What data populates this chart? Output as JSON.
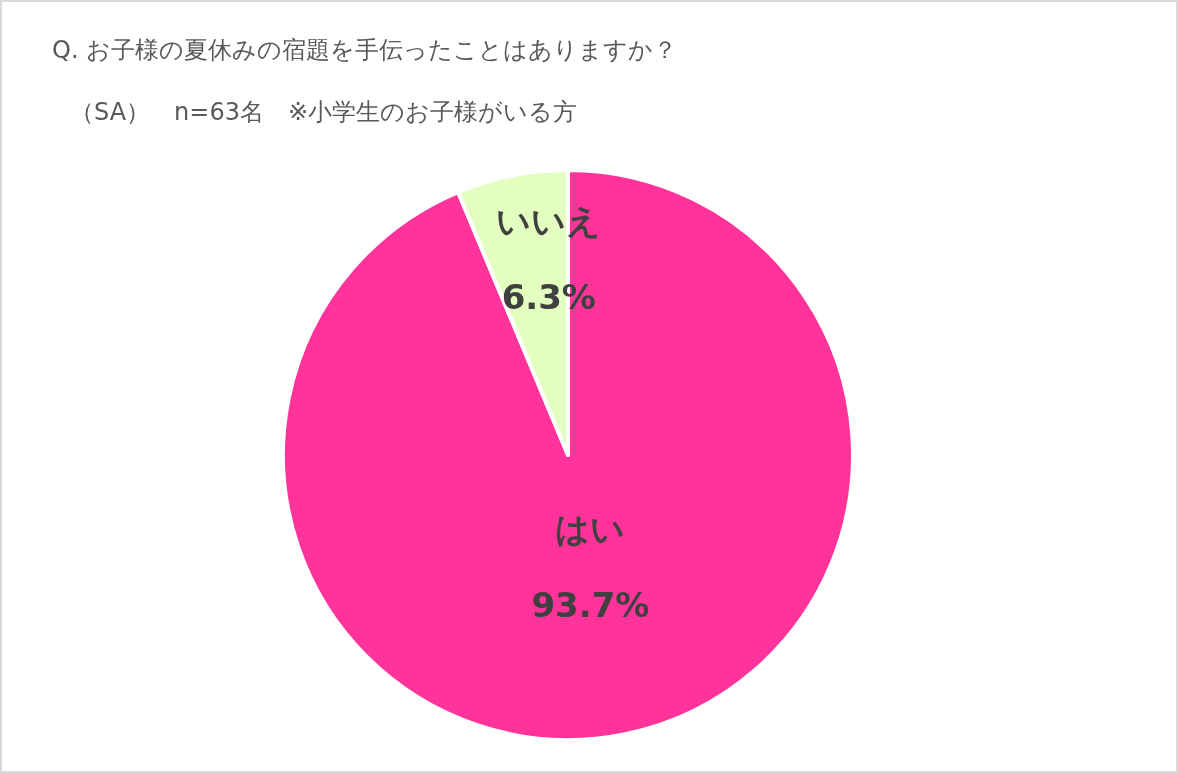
{
  "chart_data": {
    "type": "pie",
    "title": "Q. お子様の夏休みの宿題を手伝ったことはありますか？",
    "subtitle": "（SA）　n=63名　※小学生のお子様がいる方",
    "categories": [
      "はい",
      "いいえ"
    ],
    "values": [
      93.7,
      6.3
    ],
    "colors": [
      "#ff3399",
      "#e2ffc0"
    ],
    "value_labels": [
      "93.7%",
      "6.3%"
    ]
  }
}
